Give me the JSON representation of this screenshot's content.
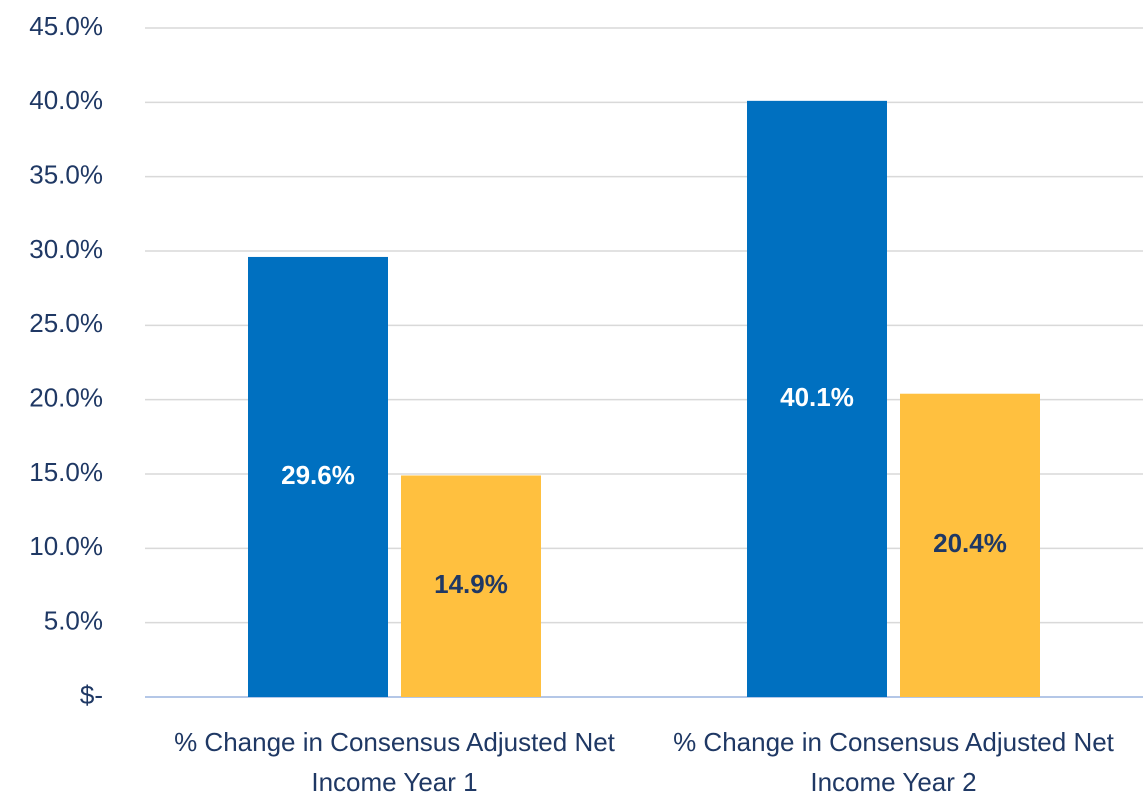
{
  "chart_data": {
    "type": "bar",
    "categories": [
      "% Change in Consensus Adjusted Net Income Year 1",
      "% Change in Consensus Adjusted Net Income Year 2"
    ],
    "series": [
      {
        "color": "#0070c0",
        "label_color": "#ffffff",
        "values": [
          29.6,
          40.1
        ],
        "value_labels": [
          "29.6%",
          "40.1%"
        ]
      },
      {
        "color": "#ffc03f",
        "label_color": "#1f3864",
        "values": [
          14.9,
          20.4
        ],
        "value_labels": [
          "14.9%",
          "20.4%"
        ]
      }
    ],
    "ylim": [
      0,
      45
    ],
    "yticks": [
      {
        "value": 0,
        "label": "$-"
      },
      {
        "value": 5,
        "label": "5.0%"
      },
      {
        "value": 10,
        "label": "10.0%"
      },
      {
        "value": 15,
        "label": "15.0%"
      },
      {
        "value": 20,
        "label": "20.0%"
      },
      {
        "value": 25,
        "label": "25.0%"
      },
      {
        "value": 30,
        "label": "30.0%"
      },
      {
        "value": 35,
        "label": "35.0%"
      },
      {
        "value": 40,
        "label": "40.0%"
      },
      {
        "value": 45,
        "label": "45.0%"
      }
    ],
    "grid": true
  }
}
